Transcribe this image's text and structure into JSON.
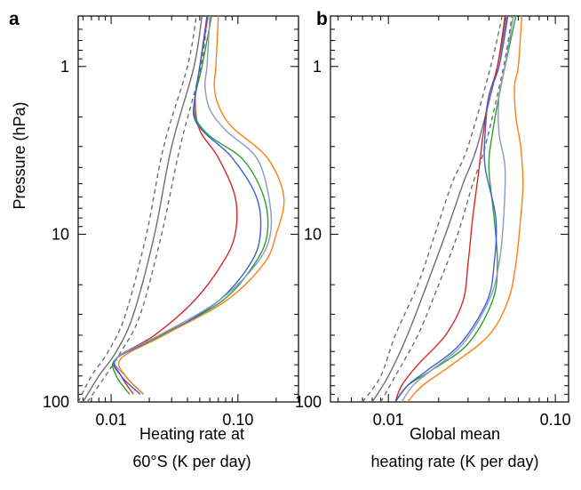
{
  "colors": {
    "black": "#000000",
    "gray": "#6e6e6e",
    "red": "#d62728",
    "green": "#2ca02c",
    "blue": "#3a5fd6",
    "lightblue": "#8a98c8",
    "orange": "#ff7f0e"
  },
  "chart_data": [
    {
      "panel_label": "a",
      "type": "line",
      "ylabel": "Pressure (hPa)",
      "xlabel_lines": [
        "Heating rate at",
        "60°S  (K per day)"
      ],
      "x_scale": "log",
      "y_scale": "log",
      "y_reversed": true,
      "xlim": [
        0.0055,
        0.3
      ],
      "ylim": [
        100,
        0.5
      ],
      "x_ticks": [
        0.01,
        0.1
      ],
      "x_tick_labels": [
        "0.01",
        "0.10"
      ],
      "y_ticks": [
        1,
        10,
        100
      ],
      "y_tick_labels": [
        "1",
        "10",
        "100"
      ],
      "series": [
        {
          "color": "gray",
          "style": "solid",
          "points": [
            [
              0.006,
              100
            ],
            [
              0.008,
              70
            ],
            [
              0.011,
              50
            ],
            [
              0.015,
              30
            ],
            [
              0.022,
              10
            ],
            [
              0.03,
              3
            ],
            [
              0.045,
              1
            ],
            [
              0.052,
              0.5
            ]
          ]
        },
        {
          "color": "gray",
          "style": "dashed",
          "points": [
            [
              0.0055,
              100
            ],
            [
              0.007,
              70
            ],
            [
              0.0095,
              50
            ],
            [
              0.013,
              30
            ],
            [
              0.019,
              10
            ],
            [
              0.026,
              3
            ],
            [
              0.04,
              1
            ],
            [
              0.047,
              0.5
            ]
          ]
        },
        {
          "color": "gray",
          "style": "dashed",
          "points": [
            [
              0.0065,
              100
            ],
            [
              0.009,
              70
            ],
            [
              0.012,
              50
            ],
            [
              0.017,
              30
            ],
            [
              0.025,
              10
            ],
            [
              0.035,
              3
            ],
            [
              0.051,
              1
            ],
            [
              0.057,
              0.5
            ]
          ]
        },
        {
          "color": "red",
          "style": "solid",
          "points": [
            [
              0.015,
              90
            ],
            [
              0.012,
              70
            ],
            [
              0.011,
              55
            ],
            [
              0.022,
              40
            ],
            [
              0.045,
              25
            ],
            [
              0.075,
              15
            ],
            [
              0.095,
              10
            ],
            [
              0.095,
              6
            ],
            [
              0.07,
              3.5
            ],
            [
              0.05,
              2.4
            ],
            [
              0.046,
              1.6
            ],
            [
              0.05,
              1
            ],
            [
              0.058,
              0.5
            ]
          ]
        },
        {
          "color": "green",
          "style": "solid",
          "points": [
            [
              0.014,
              90
            ],
            [
              0.011,
              70
            ],
            [
              0.011,
              55
            ],
            [
              0.025,
              40
            ],
            [
              0.075,
              25
            ],
            [
              0.135,
              15
            ],
            [
              0.17,
              10
            ],
            [
              0.16,
              6
            ],
            [
              0.11,
              3.6
            ],
            [
              0.06,
              2.6
            ],
            [
              0.046,
              2
            ],
            [
              0.046,
              1.5
            ],
            [
              0.052,
              1
            ],
            [
              0.062,
              0.5
            ]
          ]
        },
        {
          "color": "blue",
          "style": "solid",
          "points": [
            [
              0.017,
              90
            ],
            [
              0.012,
              70
            ],
            [
              0.011,
              55
            ],
            [
              0.026,
              40
            ],
            [
              0.07,
              25
            ],
            [
              0.125,
              15
            ],
            [
              0.15,
              10
            ],
            [
              0.14,
              6
            ],
            [
              0.09,
              3.5
            ],
            [
              0.055,
              2.5
            ],
            [
              0.045,
              2
            ],
            [
              0.046,
              1.5
            ],
            [
              0.05,
              1
            ],
            [
              0.057,
              0.5
            ]
          ]
        },
        {
          "color": "lightblue",
          "style": "solid",
          "points": [
            [
              0.018,
              90
            ],
            [
              0.013,
              70
            ],
            [
              0.011,
              55
            ],
            [
              0.024,
              40
            ],
            [
              0.07,
              25
            ],
            [
              0.14,
              15
            ],
            [
              0.18,
              10
            ],
            [
              0.175,
              6
            ],
            [
              0.14,
              3.5
            ],
            [
              0.08,
              2.4
            ],
            [
              0.06,
              1.8
            ],
            [
              0.055,
              1.3
            ],
            [
              0.057,
              1
            ],
            [
              0.06,
              0.5
            ]
          ]
        },
        {
          "color": "orange",
          "style": "solid",
          "points": [
            [
              0.018,
              90
            ],
            [
              0.013,
              70
            ],
            [
              0.012,
              55
            ],
            [
              0.026,
              40
            ],
            [
              0.08,
              25
            ],
            [
              0.16,
              15
            ],
            [
              0.2,
              10
            ],
            [
              0.23,
              6
            ],
            [
              0.17,
              3.5
            ],
            [
              0.09,
              2.3
            ],
            [
              0.07,
              1.7
            ],
            [
              0.065,
              1.3
            ],
            [
              0.067,
              1
            ],
            [
              0.07,
              0.5
            ]
          ]
        }
      ]
    },
    {
      "panel_label": "b",
      "type": "line",
      "ylabel": "",
      "xlabel_lines": [
        "Global mean",
        "heating rate (K per day)"
      ],
      "x_scale": "log",
      "y_scale": "log",
      "y_reversed": true,
      "xlim": [
        0.0045,
        0.12
      ],
      "ylim": [
        100,
        0.5
      ],
      "x_ticks": [
        0.01,
        0.1
      ],
      "x_tick_labels": [
        "0.01",
        "0.10"
      ],
      "y_ticks": [
        1,
        10,
        100
      ],
      "y_tick_labels": [
        "1",
        "10",
        "100"
      ],
      "series": [
        {
          "color": "gray",
          "style": "solid",
          "points": [
            [
              0.008,
              100
            ],
            [
              0.01,
              70
            ],
            [
              0.013,
              40
            ],
            [
              0.017,
              20
            ],
            [
              0.022,
              10
            ],
            [
              0.028,
              5
            ],
            [
              0.034,
              3
            ],
            [
              0.045,
              1
            ],
            [
              0.051,
              0.5
            ]
          ]
        },
        {
          "color": "gray",
          "style": "dashed",
          "points": [
            [
              0.007,
              100
            ],
            [
              0.009,
              70
            ],
            [
              0.011,
              40
            ],
            [
              0.015,
              20
            ],
            [
              0.019,
              10
            ],
            [
              0.024,
              5
            ],
            [
              0.03,
              3
            ],
            [
              0.041,
              1
            ],
            [
              0.048,
              0.5
            ]
          ]
        },
        {
          "color": "gray",
          "style": "dashed",
          "points": [
            [
              0.009,
              100
            ],
            [
              0.011,
              70
            ],
            [
              0.015,
              40
            ],
            [
              0.02,
              20
            ],
            [
              0.026,
              10
            ],
            [
              0.032,
              5
            ],
            [
              0.038,
              3
            ],
            [
              0.049,
              1
            ],
            [
              0.055,
              0.5
            ]
          ]
        },
        {
          "color": "red",
          "style": "solid",
          "points": [
            [
              0.011,
              100
            ],
            [
              0.012,
              80
            ],
            [
              0.015,
              60
            ],
            [
              0.022,
              40
            ],
            [
              0.028,
              25
            ],
            [
              0.03,
              15
            ],
            [
              0.032,
              8
            ],
            [
              0.035,
              4
            ],
            [
              0.037,
              2.5
            ],
            [
              0.04,
              1.5
            ],
            [
              0.045,
              1
            ],
            [
              0.05,
              0.5
            ]
          ]
        },
        {
          "color": "green",
          "style": "solid",
          "points": [
            [
              0.011,
              100
            ],
            [
              0.013,
              80
            ],
            [
              0.018,
              65
            ],
            [
              0.03,
              45
            ],
            [
              0.042,
              25
            ],
            [
              0.045,
              15
            ],
            [
              0.043,
              8
            ],
            [
              0.04,
              4
            ],
            [
              0.042,
              2.5
            ],
            [
              0.046,
              1.5
            ],
            [
              0.05,
              1
            ],
            [
              0.058,
              0.5
            ]
          ]
        },
        {
          "color": "blue",
          "style": "solid",
          "points": [
            [
              0.011,
              100
            ],
            [
              0.013,
              80
            ],
            [
              0.017,
              65
            ],
            [
              0.027,
              45
            ],
            [
              0.039,
              25
            ],
            [
              0.043,
              15
            ],
            [
              0.044,
              8
            ],
            [
              0.038,
              4
            ],
            [
              0.038,
              2.5
            ],
            [
              0.04,
              1.5
            ],
            [
              0.046,
              1
            ],
            [
              0.052,
              0.5
            ]
          ]
        },
        {
          "color": "lightblue",
          "style": "solid",
          "points": [
            [
              0.012,
              100
            ],
            [
              0.014,
              80
            ],
            [
              0.018,
              65
            ],
            [
              0.028,
              45
            ],
            [
              0.04,
              25
            ],
            [
              0.046,
              15
            ],
            [
              0.049,
              8
            ],
            [
              0.05,
              4
            ],
            [
              0.046,
              2.5
            ],
            [
              0.046,
              1.5
            ],
            [
              0.05,
              1
            ],
            [
              0.056,
              0.5
            ]
          ]
        },
        {
          "color": "orange",
          "style": "solid",
          "points": [
            [
              0.013,
              100
            ],
            [
              0.016,
              80
            ],
            [
              0.024,
              60
            ],
            [
              0.04,
              40
            ],
            [
              0.052,
              25
            ],
            [
              0.058,
              15
            ],
            [
              0.062,
              8
            ],
            [
              0.064,
              5
            ],
            [
              0.062,
              3
            ],
            [
              0.058,
              2
            ],
            [
              0.057,
              1.3
            ],
            [
              0.06,
              1
            ],
            [
              0.063,
              0.5
            ]
          ]
        }
      ]
    }
  ]
}
